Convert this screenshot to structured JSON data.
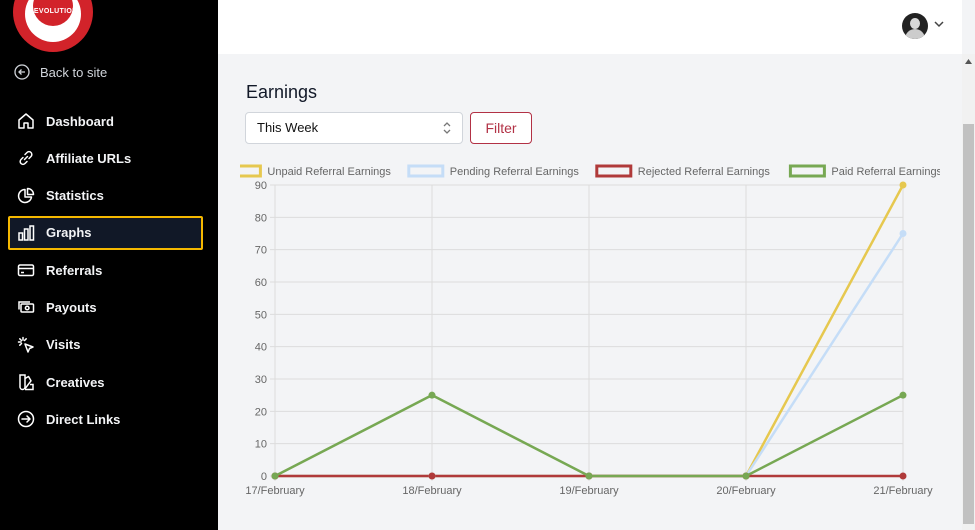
{
  "sidebar": {
    "logo_text": "REVOLUTION",
    "back_label": "Back to site",
    "items": [
      {
        "label": "Dashboard",
        "icon": "home-icon"
      },
      {
        "label": "Affiliate URLs",
        "icon": "link-icon"
      },
      {
        "label": "Statistics",
        "icon": "pie-chart-icon"
      },
      {
        "label": "Graphs",
        "icon": "bar-chart-icon",
        "active": true
      },
      {
        "label": "Referrals",
        "icon": "credit-card-icon"
      },
      {
        "label": "Payouts",
        "icon": "cash-icon"
      },
      {
        "label": "Visits",
        "icon": "cursor-click-icon"
      },
      {
        "label": "Creatives",
        "icon": "swatch-icon"
      },
      {
        "label": "Direct Links",
        "icon": "arrow-circle-icon"
      }
    ]
  },
  "header": {
    "avatar": "user-avatar",
    "menu_icon": "chevron-down-icon"
  },
  "main": {
    "title": "Earnings",
    "period_select": "This Week",
    "filter_label": "Filter"
  },
  "colors": {
    "accent": "#b23145",
    "active_border": "#f5b800"
  },
  "chart_data": {
    "type": "line",
    "categories": [
      "17/February",
      "18/February",
      "19/February",
      "20/February",
      "21/February"
    ],
    "ylim": [
      0,
      90
    ],
    "yticks": [
      0,
      10,
      20,
      30,
      40,
      50,
      60,
      70,
      80,
      90
    ],
    "legend_position": "top",
    "grid": true,
    "series": [
      {
        "name": "Unpaid Referral Earnings",
        "color": "#e6c84f",
        "values": [
          0,
          0,
          0,
          0,
          90
        ]
      },
      {
        "name": "Pending Referral Earnings",
        "color": "#c5ddf7",
        "values": [
          0,
          0,
          0,
          0,
          75
        ]
      },
      {
        "name": "Rejected Referral Earnings",
        "color": "#b03a3a",
        "values": [
          0,
          0,
          0,
          0,
          0
        ]
      },
      {
        "name": "Paid Referral Earnings",
        "color": "#77a853",
        "values": [
          0,
          25,
          0,
          0,
          25
        ]
      }
    ]
  }
}
